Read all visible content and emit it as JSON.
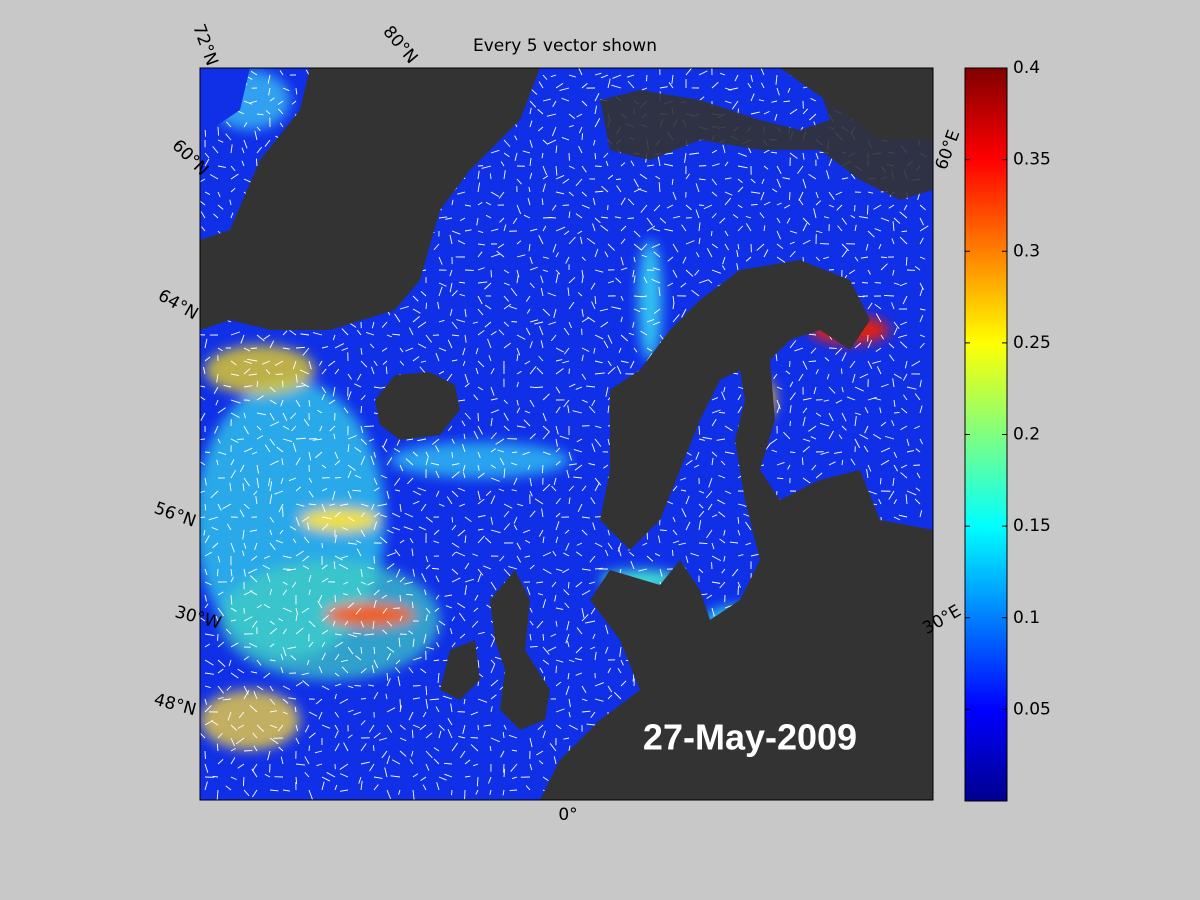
{
  "title": "Every 5 vector shown",
  "date_label": "27-May-2009",
  "grid_labels": [
    "72°N",
    "80°N",
    "60°E",
    "60°N",
    "64°N",
    "56°N",
    "30°W",
    "48°N",
    "0°",
    "30°E"
  ],
  "colorbar": {
    "lim": [
      0,
      0.4
    ],
    "ticks": [
      0.05,
      0.1,
      0.15,
      0.2,
      0.25,
      0.3,
      0.35,
      0.4
    ]
  }
}
